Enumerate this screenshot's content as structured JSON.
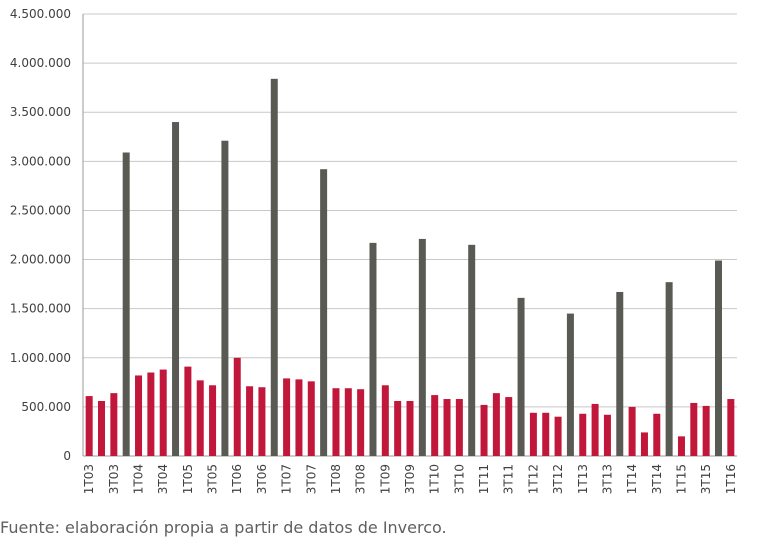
{
  "chart_data": {
    "type": "bar",
    "title": "",
    "xlabel": "",
    "ylabel": "",
    "ylim": [
      0,
      4500000
    ],
    "yticks": [
      0,
      500000,
      1000000,
      1500000,
      2000000,
      2500000,
      3000000,
      3500000,
      4000000,
      4500000
    ],
    "ytick_labels": [
      "0",
      "500.000",
      "1.000.000",
      "1.500.000",
      "2.000.000",
      "2.500.000",
      "3.000.000",
      "3.500.000",
      "4.000.000",
      "4.500.000"
    ],
    "grid": true,
    "legend": "none",
    "colors": {
      "q1": "#5a5a55",
      "other": "#c0173a"
    },
    "categories": [
      "1T03",
      "2T03",
      "3T03",
      "4T03",
      "1T04",
      "2T04",
      "3T04",
      "4T04",
      "1T05",
      "2T05",
      "3T05",
      "4T05",
      "1T06",
      "2T06",
      "3T06",
      "4T06",
      "1T07",
      "2T07",
      "3T07",
      "4T07",
      "1T08",
      "2T08",
      "3T08",
      "4T08",
      "1T09",
      "2T09",
      "3T09",
      "4T09",
      "1T10",
      "2T10",
      "3T10",
      "4T10",
      "1T11",
      "2T11",
      "3T11",
      "4T11",
      "1T12",
      "2T12",
      "3T12",
      "4T12",
      "1T13",
      "2T13",
      "3T13",
      "4T13",
      "1T14",
      "2T14",
      "3T14",
      "4T14",
      "1T15",
      "2T15",
      "3T15",
      "4T15",
      "1T16"
    ],
    "tick_labels": [
      "1T03",
      "3T03",
      "1T04",
      "3T04",
      "1T05",
      "3T05",
      "1T06",
      "3T06",
      "1T07",
      "3T07",
      "1T08",
      "3T08",
      "1T09",
      "3T09",
      "1T10",
      "3T10",
      "1T11",
      "3T11",
      "1T12",
      "3T12",
      "1T13",
      "3T13",
      "1T14",
      "3T14",
      "1T15",
      "3T15",
      "1T16"
    ],
    "values": [
      610000,
      560000,
      640000,
      3090000,
      820000,
      850000,
      880000,
      3400000,
      910000,
      770000,
      720000,
      3210000,
      1000000,
      710000,
      700000,
      3840000,
      790000,
      780000,
      760000,
      2920000,
      690000,
      690000,
      680000,
      2170000,
      720000,
      560000,
      560000,
      2210000,
      620000,
      580000,
      580000,
      2150000,
      520000,
      640000,
      600000,
      1610000,
      440000,
      440000,
      400000,
      1450000,
      430000,
      530000,
      420000,
      1670000,
      500000,
      240000,
      430000,
      1770000,
      200000,
      540000,
      510000,
      1990000,
      580000
    ],
    "bar_colors": [
      "other",
      "other",
      "other",
      "q1",
      "other",
      "other",
      "other",
      "q1",
      "other",
      "other",
      "other",
      "q1",
      "other",
      "other",
      "other",
      "q1",
      "other",
      "other",
      "other",
      "q1",
      "other",
      "other",
      "other",
      "q1",
      "other",
      "other",
      "other",
      "q1",
      "other",
      "other",
      "other",
      "q1",
      "other",
      "other",
      "other",
      "q1",
      "other",
      "other",
      "other",
      "q1",
      "other",
      "other",
      "other",
      "q1",
      "other",
      "other",
      "other",
      "q1",
      "other",
      "other",
      "other",
      "q1",
      "other"
    ]
  },
  "source_note": "Fuente: elaboración propia a partir de datos de Inverco."
}
